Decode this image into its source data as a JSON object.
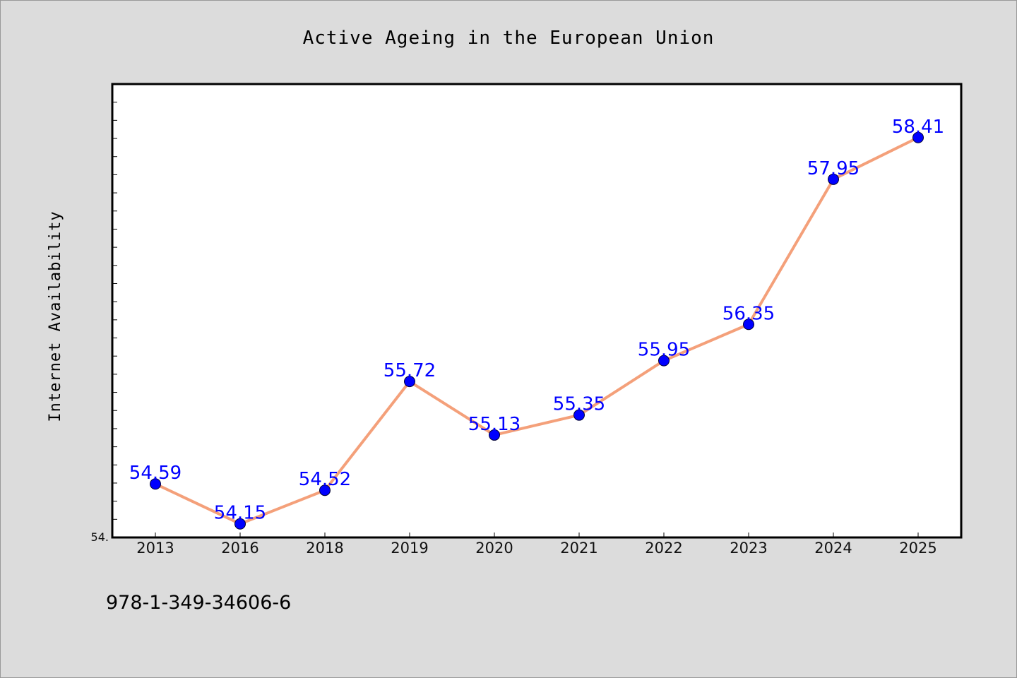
{
  "chart_data": {
    "type": "line",
    "title": "Active Ageing in the European Union",
    "xlabel": "",
    "ylabel": "Internet Availability",
    "categories": [
      "2013",
      "2016",
      "2018",
      "2019",
      "2020",
      "2021",
      "2022",
      "2023",
      "2024",
      "2025"
    ],
    "series": [
      {
        "values": [
          54.59,
          54.15,
          54.52,
          55.72,
          55.13,
          55.35,
          55.95,
          56.35,
          57.95,
          58.41
        ],
        "labels": [
          "54.59",
          "54.15",
          "54.52",
          "55.72",
          "55.13",
          "55.35",
          "55.95",
          "56.35",
          "57.95",
          "58.41"
        ],
        "line_color": "#f4a07a",
        "marker_color": "#0000ff"
      }
    ],
    "ylim": [
      54.0,
      59.0
    ],
    "ytick_label": "54.",
    "grid": false,
    "legend": "none"
  },
  "footnote": "978-1-349-34606-6",
  "colors": {
    "background": "#dcdcdc",
    "plot_background": "#ffffff",
    "line": "#f4a07a",
    "marker": "#0000ff",
    "data_label": "#0000ff"
  }
}
